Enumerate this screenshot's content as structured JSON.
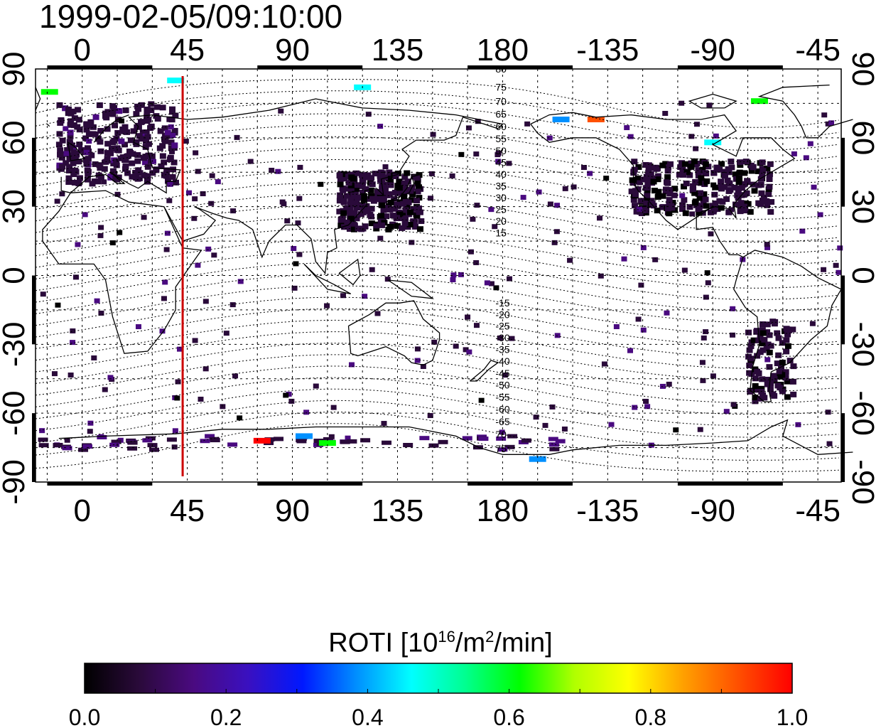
{
  "timestamp": "1999-02-05/09:10:00",
  "map": {
    "lon_labels_top": [
      "0",
      "45",
      "90",
      "135",
      "180",
      "-135",
      "-90",
      "-45"
    ],
    "lon_labels_bottom": [
      "0",
      "45",
      "90",
      "135",
      "180",
      "-135",
      "-90",
      "-45"
    ],
    "lat_labels_left": [
      "90",
      "60",
      "30",
      "0",
      "-30",
      "-60",
      "-90"
    ],
    "lat_labels_right": [
      "90",
      "60",
      "30",
      "0",
      "-30",
      "-60",
      "-90"
    ],
    "lon_range": [
      -20,
      325
    ],
    "lat_range": [
      -90,
      90
    ],
    "marker_longitude": 43,
    "marker_color": "#cc0000",
    "contour_labels_north": [
      "80",
      "75",
      "70",
      "65",
      "60",
      "55",
      "50",
      "45",
      "40",
      "35",
      "30",
      "25",
      "20",
      "15"
    ],
    "contour_labels_south": [
      "-15",
      "-20",
      "-25",
      "-30",
      "-35",
      "-40",
      "-45",
      "-50",
      "-55",
      "-60",
      "-65",
      "70",
      "75"
    ]
  },
  "colorbar": {
    "title": "ROTI  [10",
    "title_sup1": "16",
    "title_mid": "/m",
    "title_sup2": "2",
    "title_end": "/min]",
    "tick_labels": [
      "0.0",
      "0.2",
      "0.4",
      "0.6",
      "0.8",
      "1.0"
    ],
    "range": [
      0.0,
      1.0
    ],
    "colors": [
      "#000000",
      "#2a0a3a",
      "#4a0a80",
      "#3a10c0",
      "#0018ff",
      "#0090ff",
      "#00ffff",
      "#00ff90",
      "#00ff00",
      "#b0ff00",
      "#ffff00",
      "#ffa000",
      "#ff5000",
      "#ff0000"
    ]
  },
  "observations": {
    "dominant_value": 0.05,
    "regions": [
      {
        "name": "europe",
        "lon": [
          -10,
          40
        ],
        "lat": [
          40,
          75
        ],
        "value": 0.08
      },
      {
        "name": "north-america",
        "lon": [
          -125,
          -65
        ],
        "lat": [
          27,
          50
        ],
        "value": 0.05
      },
      {
        "name": "east-asia",
        "lon": [
          110,
          145
        ],
        "lat": [
          20,
          45
        ],
        "value": 0.05
      },
      {
        "name": "south-america",
        "lon": [
          -75,
          -55
        ],
        "lat": [
          -55,
          -20
        ],
        "value": 0.05
      }
    ],
    "highlights": [
      {
        "lon": -14,
        "lat": 80,
        "value": 0.6
      },
      {
        "lon": 40,
        "lat": 85,
        "value": 0.45
      },
      {
        "lon": 120,
        "lat": 82,
        "value": 0.45
      },
      {
        "lon": -70,
        "lat": 76,
        "value": 0.6
      },
      {
        "lon": -155,
        "lat": 68,
        "value": 0.35
      },
      {
        "lon": -140,
        "lat": 68,
        "value": 0.9
      },
      {
        "lon": 77,
        "lat": -72,
        "value": 1.0
      },
      {
        "lon": 95,
        "lat": -70,
        "value": 0.4
      },
      {
        "lon": 105,
        "lat": -73,
        "value": 0.6
      },
      {
        "lon": 195,
        "lat": -80,
        "value": 0.4
      },
      {
        "lon": -90,
        "lat": 58,
        "value": 0.45
      }
    ]
  }
}
